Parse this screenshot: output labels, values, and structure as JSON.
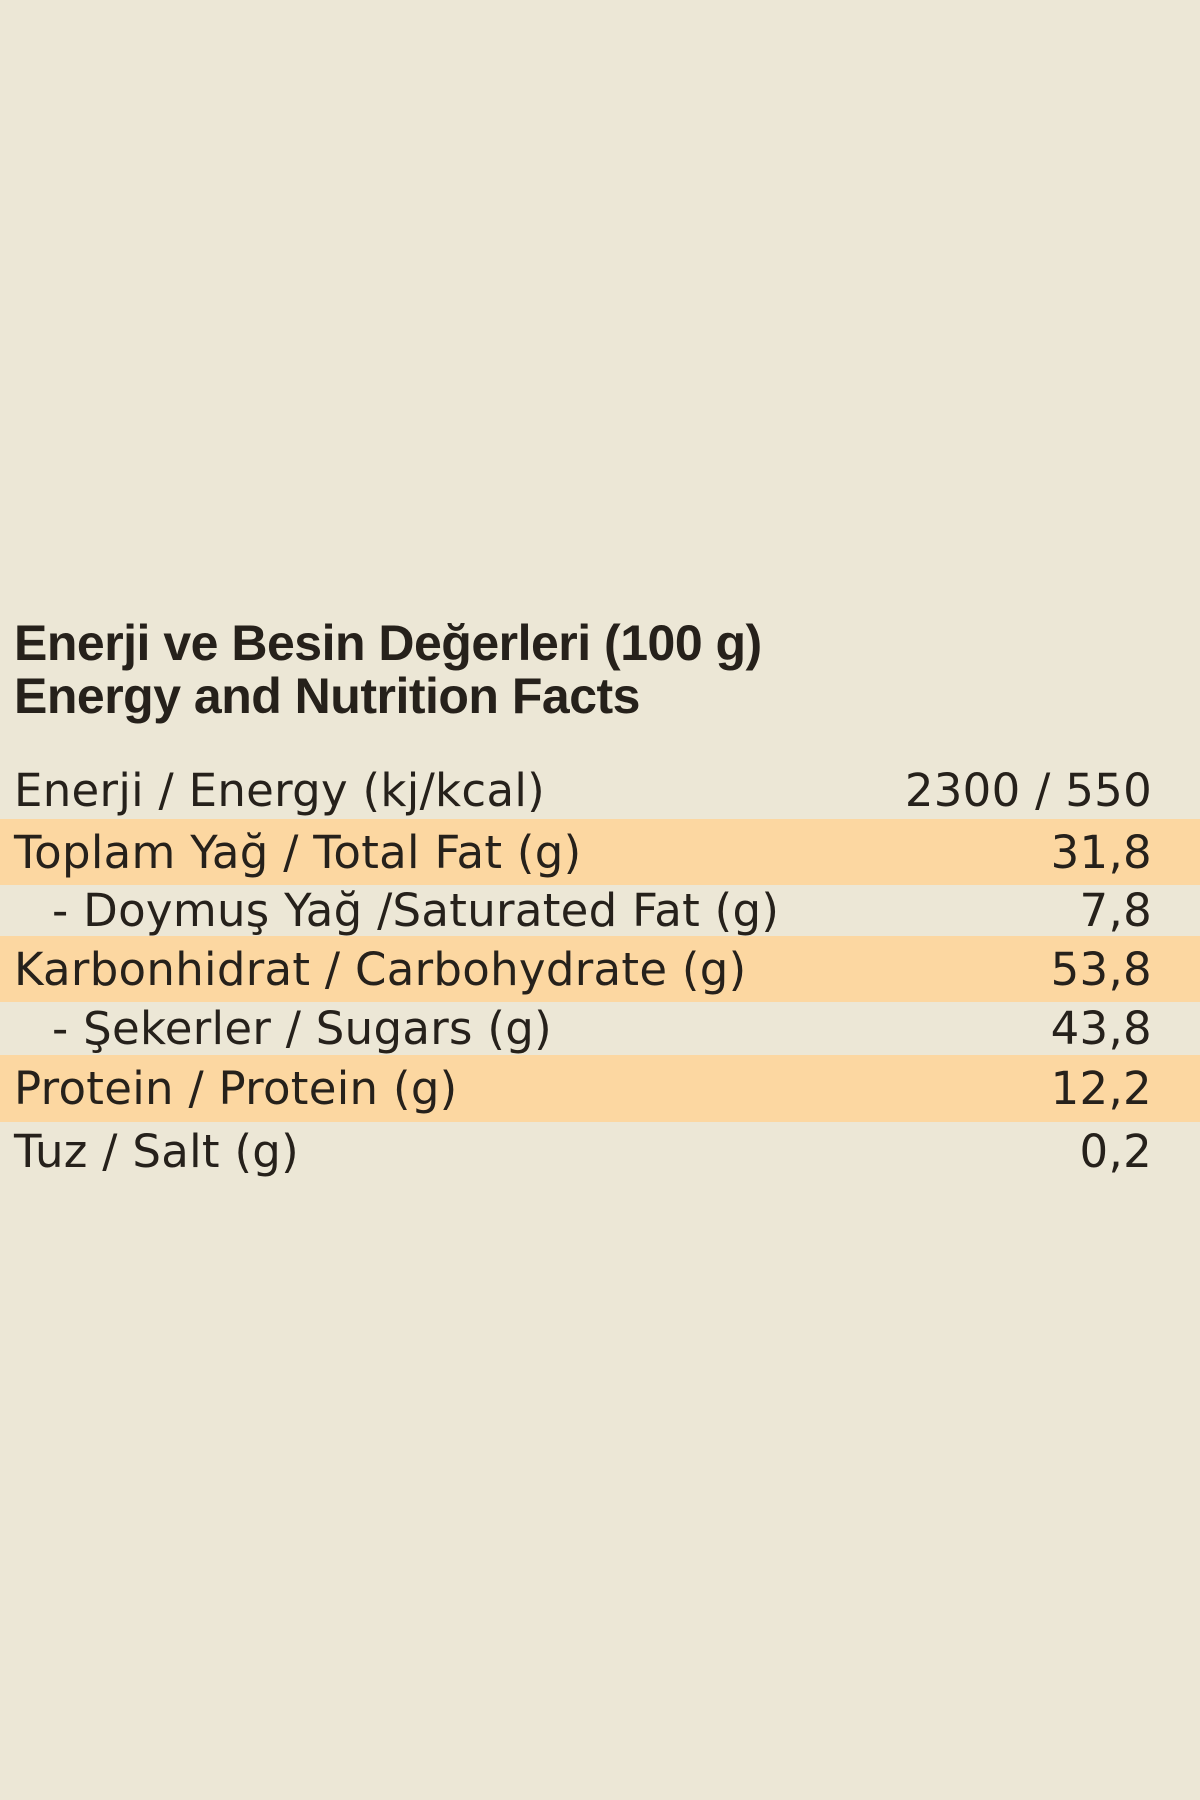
{
  "colors": {
    "background": "#ECE7D6",
    "highlight": "#FCD7A1",
    "text": "#26211B"
  },
  "header": {
    "title_line1": "Enerji ve Besin Değerleri (100 g)",
    "title_line2": "Energy and Nutrition Facts"
  },
  "table": {
    "rows": [
      {
        "label": "Enerji / Energy (kj/kcal)",
        "value": "2300 / 550",
        "highlighted": false,
        "indent": false
      },
      {
        "label": "Toplam Yağ / Total Fat (g)",
        "value": "31,8",
        "highlighted": true,
        "indent": false
      },
      {
        "label": "- Doymuş Yağ /Saturated Fat (g)",
        "value": "7,8",
        "highlighted": false,
        "indent": true
      },
      {
        "label": "Karbonhidrat / Carbohydrate (g)",
        "value": "53,8",
        "highlighted": true,
        "indent": false
      },
      {
        "label": "- Şekerler / Sugars (g)",
        "value": "43,8",
        "highlighted": false,
        "indent": true
      },
      {
        "label": "Protein / Protein (g)",
        "value": "12,2",
        "highlighted": true,
        "indent": false
      },
      {
        "label": "Tuz / Salt (g)",
        "value": "0,2",
        "highlighted": false,
        "indent": false
      }
    ]
  }
}
